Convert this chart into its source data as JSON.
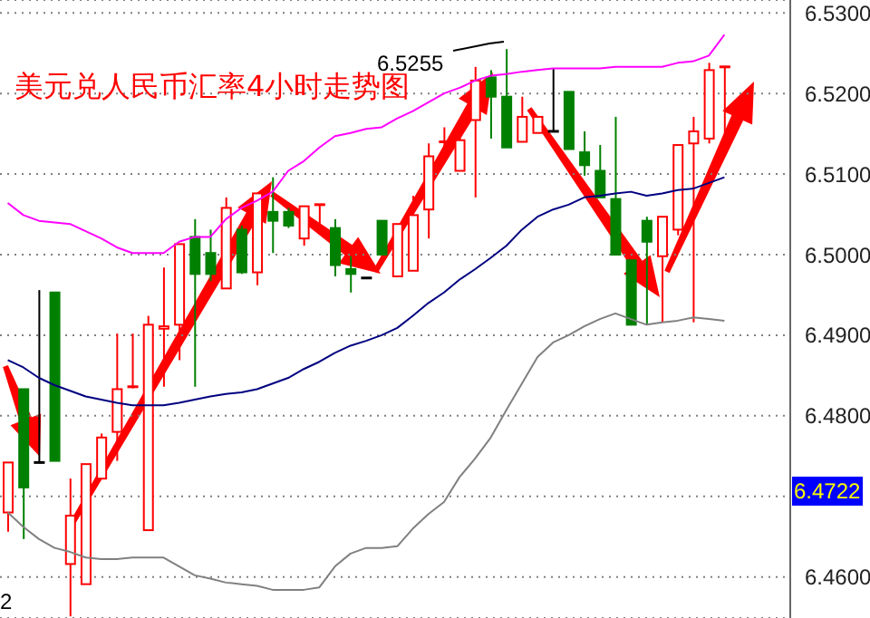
{
  "chart_data": {
    "type": "candlestick",
    "title": "美元兑人民币汇率4小时走势图",
    "categories": [
      null,
      null,
      null,
      null,
      null,
      null,
      null,
      null,
      null,
      null,
      null,
      null,
      null,
      null,
      null,
      null,
      null,
      null,
      null,
      null,
      null,
      null,
      null,
      null,
      null,
      null,
      null,
      null,
      null,
      null,
      null,
      null,
      null,
      null,
      null,
      null,
      null,
      null,
      null,
      null,
      null,
      null,
      null,
      null,
      null,
      null,
      null
    ],
    "ohlc": [
      [
        6.468,
        6.4742,
        6.4656,
        6.4742
      ],
      [
        6.4833,
        6.4833,
        6.4647,
        6.4711
      ],
      [
        6.4742,
        6.4956,
        6.4742,
        6.4742
      ],
      [
        6.4953,
        6.4953,
        6.4744,
        6.4744
      ],
      [
        6.4616,
        6.4722,
        6.4551,
        6.4676
      ],
      [
        6.4591,
        6.474,
        6.4591,
        6.474
      ],
      [
        6.4722,
        6.4778,
        6.4722,
        6.4773
      ],
      [
        6.478,
        6.4902,
        6.4744,
        6.4833
      ],
      [
        6.4834,
        6.4902,
        6.4834,
        6.4836
      ],
      [
        6.4658,
        6.4924,
        6.4658,
        6.4913
      ],
      [
        6.4908,
        6.4984,
        6.4836,
        6.4911
      ],
      [
        6.4913,
        6.5013,
        6.4869,
        6.5013
      ],
      [
        6.5022,
        6.5044,
        6.4836,
        6.4976
      ],
      [
        6.5002,
        6.5031,
        6.4967,
        6.4976
      ],
      [
        6.4958,
        6.5071,
        6.4958,
        6.5058
      ],
      [
        6.5031,
        6.5036,
        6.4976,
        6.4978
      ],
      [
        6.4978,
        6.5076,
        6.4962,
        6.5076
      ],
      [
        6.5053,
        6.5096,
        6.5002,
        6.5042
      ],
      [
        6.5053,
        6.5058,
        6.5033,
        6.5036
      ],
      [
        6.502,
        6.506,
        6.5011,
        6.506
      ],
      [
        6.5061,
        6.5062,
        6.5033,
        6.5062
      ],
      [
        6.5033,
        6.5044,
        6.4973,
        6.4987
      ],
      [
        6.4982,
        6.4998,
        6.4953,
        6.4976
      ],
      [
        6.4971,
        6.4971,
        6.4971,
        6.4971
      ],
      [
        6.5042,
        6.5042,
        6.5,
        6.5
      ],
      [
        6.4973,
        6.5038,
        6.4973,
        6.5038
      ],
      [
        6.498,
        6.5073,
        6.498,
        6.5049
      ],
      [
        6.5056,
        6.5138,
        6.502,
        6.5122
      ],
      [
        6.5138,
        6.5158,
        6.5122,
        6.514
      ],
      [
        6.5104,
        6.5151,
        6.5104,
        6.5142
      ],
      [
        6.5167,
        6.5233,
        6.5071,
        6.5216
      ],
      [
        6.522,
        6.5229,
        6.5144,
        6.5196
      ],
      [
        6.5196,
        6.5255,
        6.5133,
        6.5133
      ],
      [
        6.514,
        6.5196,
        6.514,
        6.5171
      ],
      [
        6.5151,
        6.5171,
        6.5151,
        6.5171
      ],
      [
        6.5153,
        6.5231,
        6.5153,
        6.5153
      ],
      [
        6.5202,
        6.5202,
        6.5131,
        6.5131
      ],
      [
        6.5127,
        6.5153,
        6.5098,
        6.5111
      ],
      [
        6.5104,
        6.5136,
        6.5071,
        6.5071
      ],
      [
        6.5069,
        6.5171,
        6.5,
        6.5
      ],
      [
        6.4993,
        6.4993,
        6.4913,
        6.4913
      ],
      [
        6.5042,
        6.5047,
        6.4913,
        6.5016
      ],
      [
        6.4998,
        6.5047,
        6.4916,
        6.5047
      ],
      [
        6.5031,
        6.5136,
        6.5024,
        6.5136
      ],
      [
        6.5138,
        6.5171,
        6.4916,
        6.5153
      ],
      [
        6.5144,
        6.5238,
        6.5138,
        6.5229
      ],
      [
        6.5231,
        6.5233,
        6.514,
        6.5233
      ]
    ],
    "colors": [
      "#ff0000",
      "#008000",
      "#000000",
      "#008000",
      "#ff0000",
      "#ff0000",
      "#ff0000",
      "#ff0000",
      "#ff0000",
      "#ff0000",
      "#ff0000",
      "#ff0000",
      "#008000",
      "#008000",
      "#ff0000",
      "#008000",
      "#ff0000",
      "#008000",
      "#008000",
      "#ff0000",
      "#ff0000",
      "#008000",
      "#008000",
      "#000000",
      "#008000",
      "#ff0000",
      "#ff0000",
      "#ff0000",
      "#ff0000",
      "#ff0000",
      "#ff0000",
      "#008000",
      "#008000",
      "#ff0000",
      "#ff0000",
      "#000000",
      "#008000",
      "#008000",
      "#008000",
      "#008000",
      "#008000",
      "#008000",
      "#ff0000",
      "#ff0000",
      "#ff0000",
      "#ff0000",
      "#ff0000"
    ],
    "series": [
      {
        "type": "line",
        "color": "#ff00ff",
        "values": [
          6.5064,
          6.5049,
          6.5042,
          6.504,
          6.5038,
          6.5029,
          6.502,
          6.5009,
          6.5002,
          6.5002,
          6.5002,
          6.5016,
          6.5022,
          6.5022,
          6.5044,
          6.5058,
          6.5067,
          6.5078,
          6.5104,
          6.5116,
          6.5133,
          6.5147,
          6.5151,
          6.5156,
          6.5158,
          6.5169,
          6.5178,
          6.5189,
          6.52,
          6.5207,
          6.5216,
          6.5222,
          6.5224,
          6.5227,
          6.5229,
          6.5231,
          6.5231,
          6.5231,
          6.5231,
          6.5233,
          6.5233,
          6.5233,
          6.5233,
          6.5238,
          6.524,
          6.5247,
          6.5273
        ]
      },
      {
        "type": "line",
        "color": "#000080",
        "values": [
          6.4869,
          6.486,
          6.4847,
          6.4838,
          6.4831,
          6.4824,
          6.482,
          6.4816,
          6.4813,
          6.4813,
          6.4813,
          6.4816,
          6.482,
          6.4824,
          6.4827,
          6.4829,
          6.4833,
          6.484,
          6.4847,
          6.4858,
          6.4867,
          6.4878,
          6.4887,
          6.4893,
          6.49,
          6.4909,
          6.4924,
          6.494,
          6.4953,
          6.4969,
          6.4982,
          6.4996,
          6.5011,
          6.5031,
          6.5047,
          6.5056,
          6.5062,
          6.5071,
          6.5073,
          6.5076,
          6.5078,
          6.5073,
          6.5076,
          6.508,
          6.5082,
          6.5089,
          6.5096
        ]
      },
      {
        "type": "line",
        "color": "#808080",
        "values": [
          6.468,
          6.4662,
          6.4647,
          6.4636,
          6.4631,
          6.4624,
          6.4622,
          6.4622,
          6.4624,
          6.4624,
          6.4624,
          6.4613,
          6.4602,
          6.4598,
          6.4593,
          6.4591,
          6.4589,
          6.4584,
          6.4584,
          6.4584,
          6.4587,
          6.4613,
          6.4629,
          6.4636,
          6.4636,
          6.4638,
          6.466,
          6.4678,
          6.4693,
          6.4724,
          6.4747,
          6.4773,
          6.4807,
          6.484,
          6.4873,
          6.4891,
          6.49,
          6.4911,
          6.492,
          6.4927,
          6.492,
          6.4913,
          6.4916,
          6.4918,
          6.4922,
          6.492,
          6.4918
        ]
      }
    ],
    "ylim": [
      6.4549,
      6.5316
    ],
    "yticks": [
      {
        "value": 6.46,
        "label": "6.4600"
      },
      {
        "value": 6.47,
        "label": null
      },
      {
        "value": 6.48,
        "label": "6.4800"
      },
      {
        "value": 6.49,
        "label": "6.4900"
      },
      {
        "value": 6.5,
        "label": "6.5000"
      },
      {
        "value": 6.51,
        "label": "6.5100"
      },
      {
        "value": 6.52,
        "label": "6.5200"
      },
      {
        "value": 6.53,
        "label": "6.5300"
      }
    ],
    "annotations": [
      "6.5255",
      "2",
      "6.4722"
    ],
    "grid": "y",
    "tick_labels": "y",
    "marker": "none",
    "line_style": "solid"
  }
}
